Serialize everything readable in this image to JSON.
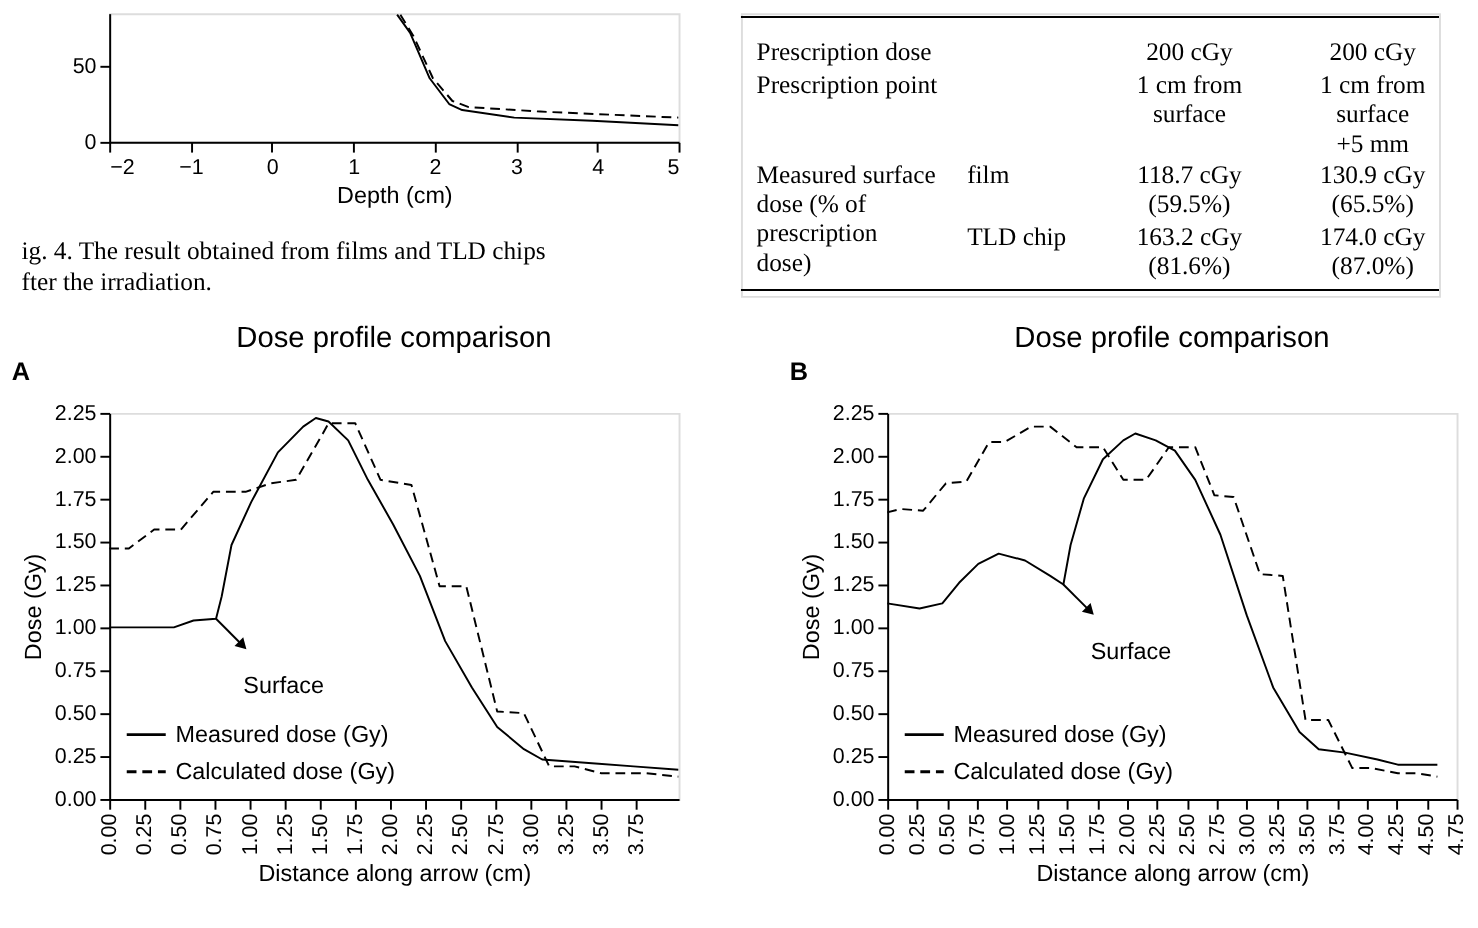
{
  "chart_data": [
    {
      "type": "line",
      "xlabel": "Depth (cm)",
      "xlim": [
        -2,
        5
      ],
      "xticks": [
        -2,
        -1,
        0,
        1,
        2,
        3,
        4,
        5
      ],
      "ylim": [
        0,
        85
      ],
      "yticks": [
        0,
        50
      ],
      "grid": false,
      "legend": false,
      "series": [
        {
          "color": "#000000",
          "line_style": "solid",
          "x": [
            1.54,
            1.7,
            1.94,
            2.18,
            2.34,
            2.98,
            3.94,
            5
          ],
          "values": [
            84,
            72,
            42,
            25,
            21,
            16,
            14,
            11
          ]
        },
        {
          "color": "#000000",
          "line_style": "dashed",
          "x": [
            1.58,
            1.74,
            1.98,
            2.22,
            2.42,
            3.3,
            5
          ],
          "values": [
            84,
            70,
            42,
            27,
            23,
            20,
            16
          ]
        }
      ],
      "annotations": [
        "ig. 4. The result obtained from films and TLD chips",
        "fter the irradiation."
      ]
    },
    {
      "type": "other",
      "annotations": [
        "Prescription dose",
        "200 cGy",
        "200 cGy",
        "Prescription point",
        "1 cm from\nsurface",
        "1 cm from\nsurface\n+5 mm",
        "Measured surface\n dose (% of\n prescription\n dose)",
        "film",
        "118.7 cGy\n(59.5%)",
        "130.9 cGy\n(65.5%)",
        "TLD chip",
        "163.2 cGy\n(81.6%)",
        "174.0 cGy\n(87.0%)"
      ]
    },
    {
      "type": "line",
      "title": "Dose profile comparison",
      "xlabel": "Distance along arrow (cm)",
      "ylabel": "Dose (Gy)",
      "xlim": [
        0,
        4.05
      ],
      "xticks": [
        {
          "value": 0,
          "label": "0.00"
        },
        {
          "value": 0.25,
          "label": "0.25"
        },
        {
          "value": 0.5,
          "label": "0.50"
        },
        {
          "value": 0.75,
          "label": "0.75"
        },
        {
          "value": 1,
          "label": "1.00"
        },
        {
          "value": 1.25,
          "label": "1.25"
        },
        {
          "value": 1.5,
          "label": "1.50"
        },
        {
          "value": 1.75,
          "label": "1.75"
        },
        {
          "value": 2,
          "label": "2.00"
        },
        {
          "value": 2.25,
          "label": "2.25"
        },
        {
          "value": 2.5,
          "label": "2.50"
        },
        {
          "value": 2.75,
          "label": "2.75"
        },
        {
          "value": 3,
          "label": "3.00"
        },
        {
          "value": 3.25,
          "label": "3.25"
        },
        {
          "value": 3.5,
          "label": "3.50"
        },
        {
          "value": 3.75,
          "label": "3.75"
        }
      ],
      "ylim": [
        0,
        2.25
      ],
      "yticks": [
        {
          "value": 0,
          "label": "0.00"
        },
        {
          "value": 0.25,
          "label": "0.25"
        },
        {
          "value": 0.5,
          "label": "0.50"
        },
        {
          "value": 0.75,
          "label": "0.75"
        },
        {
          "value": 1,
          "label": "1.00"
        },
        {
          "value": 1.25,
          "label": "1.25"
        },
        {
          "value": 1.5,
          "label": "1.50"
        },
        {
          "value": 1.75,
          "label": "1.75"
        },
        {
          "value": 2,
          "label": "2.00"
        },
        {
          "value": 2.25,
          "label": "2.25"
        }
      ],
      "grid": false,
      "legend": "bottom left",
      "series": [
        {
          "name": "Measured dose (Gy)",
          "color": "#000000",
          "line_style": "solid",
          "x": [
            0,
            0.46,
            0.6,
            0.76,
            0.8,
            0.87,
            1.01,
            1.2,
            1.38,
            1.47,
            1.56,
            1.7,
            1.84,
            2.02,
            2.21,
            2.39,
            2.58,
            2.76,
            2.95,
            3.08,
            3.41,
            3.73,
            4.05
          ],
          "values": [
            1.0,
            1.0,
            1.04,
            1.05,
            1.18,
            1.48,
            1.73,
            2.02,
            2.17,
            2.22,
            2.2,
            2.09,
            1.86,
            1.6,
            1.3,
            0.92,
            0.65,
            0.42,
            0.29,
            0.23,
            0.21,
            0.19,
            0.17
          ]
        },
        {
          "name": "Calculated dose (Gy)",
          "color": "#000000",
          "line_style": "dashed",
          "x": [
            0,
            0.14,
            0.32,
            0.51,
            0.74,
            0.97,
            1.15,
            1.33,
            1.52,
            1.56,
            1.75,
            1.93,
            2.15,
            2.35,
            2.54,
            2.76,
            2.95,
            3.13,
            3.31,
            3.5,
            3.82,
            4.05
          ],
          "values": [
            1.46,
            1.46,
            1.57,
            1.57,
            1.79,
            1.79,
            1.84,
            1.86,
            2.13,
            2.19,
            2.19,
            1.86,
            1.83,
            1.24,
            1.24,
            0.51,
            0.5,
            0.19,
            0.19,
            0.15,
            0.15,
            0.13
          ]
        }
      ],
      "annotations": [
        "A",
        {
          "text": "Surface",
          "x": 0.76,
          "y": 1.05
        }
      ]
    },
    {
      "type": "line",
      "title": "Dose profile comparison",
      "xlabel": "Distance along arrow (cm)",
      "ylabel": "Dose (Gy)",
      "xlim": [
        0,
        4.75
      ],
      "xticks": [
        {
          "value": 0,
          "label": "0.00"
        },
        {
          "value": 0.25,
          "label": "0.25"
        },
        {
          "value": 0.5,
          "label": "0.50"
        },
        {
          "value": 0.75,
          "label": "0.75"
        },
        {
          "value": 1,
          "label": "1.00"
        },
        {
          "value": 1.25,
          "label": "1.25"
        },
        {
          "value": 1.5,
          "label": "1.50"
        },
        {
          "value": 1.75,
          "label": "1.75"
        },
        {
          "value": 2,
          "label": "2.00"
        },
        {
          "value": 2.25,
          "label": "2.25"
        },
        {
          "value": 2.5,
          "label": "2.50"
        },
        {
          "value": 2.75,
          "label": "2.75"
        },
        {
          "value": 3,
          "label": "3.00"
        },
        {
          "value": 3.25,
          "label": "3.25"
        },
        {
          "value": 3.5,
          "label": "3.50"
        },
        {
          "value": 3.75,
          "label": "3.75"
        },
        {
          "value": 4,
          "label": "4.00"
        },
        {
          "value": 4.25,
          "label": "4.25"
        },
        {
          "value": 4.5,
          "label": "4.50"
        },
        {
          "value": 4.75,
          "label": "4.75"
        }
      ],
      "ylim": [
        0,
        2.25
      ],
      "yticks": [
        {
          "value": 0,
          "label": "0.00"
        },
        {
          "value": 0.25,
          "label": "0.25"
        },
        {
          "value": 0.5,
          "label": "0.50"
        },
        {
          "value": 0.75,
          "label": "0.75"
        },
        {
          "value": 1,
          "label": "1.00"
        },
        {
          "value": 1.25,
          "label": "1.25"
        },
        {
          "value": 1.5,
          "label": "1.50"
        },
        {
          "value": 1.75,
          "label": "1.75"
        },
        {
          "value": 2,
          "label": "2.00"
        },
        {
          "value": 2.25,
          "label": "2.25"
        }
      ],
      "grid": false,
      "legend": "bottom left",
      "series": [
        {
          "name": "Measured dose (Gy)",
          "color": "#000000",
          "line_style": "solid",
          "x": [
            0,
            0.27,
            0.46,
            0.6,
            0.76,
            0.93,
            1.15,
            1.36,
            1.47,
            1.53,
            1.64,
            1.8,
            1.97,
            2.07,
            2.24,
            2.4,
            2.57,
            2.78,
            3.0,
            3.22,
            3.44,
            3.6,
            3.82,
            4.09,
            4.26,
            4.59
          ],
          "values": [
            1.14,
            1.11,
            1.14,
            1.26,
            1.37,
            1.43,
            1.39,
            1.3,
            1.25,
            1.48,
            1.75,
            1.98,
            2.09,
            2.13,
            2.09,
            2.03,
            1.86,
            1.54,
            1.07,
            0.65,
            0.39,
            0.29,
            0.27,
            0.23,
            0.2,
            0.2
          ]
        },
        {
          "name": "Calculated dose (Gy)",
          "color": "#000000",
          "line_style": "dashed",
          "x": [
            0,
            0.11,
            0.3,
            0.49,
            0.66,
            0.85,
            0.98,
            1.2,
            1.36,
            1.58,
            1.8,
            1.97,
            2.16,
            2.35,
            2.57,
            2.73,
            2.89,
            3.11,
            3.3,
            3.49,
            3.68,
            3.88,
            4.04,
            4.26,
            4.42,
            4.59
          ],
          "values": [
            1.67,
            1.69,
            1.68,
            1.84,
            1.85,
            2.08,
            2.08,
            2.17,
            2.17,
            2.05,
            2.05,
            1.86,
            1.86,
            2.05,
            2.05,
            1.77,
            1.76,
            1.31,
            1.3,
            0.46,
            0.46,
            0.18,
            0.18,
            0.15,
            0.15,
            0.13
          ]
        }
      ],
      "annotations": [
        "B",
        {
          "text": "Surface",
          "x": 1.47,
          "y": 1.25
        }
      ]
    }
  ]
}
